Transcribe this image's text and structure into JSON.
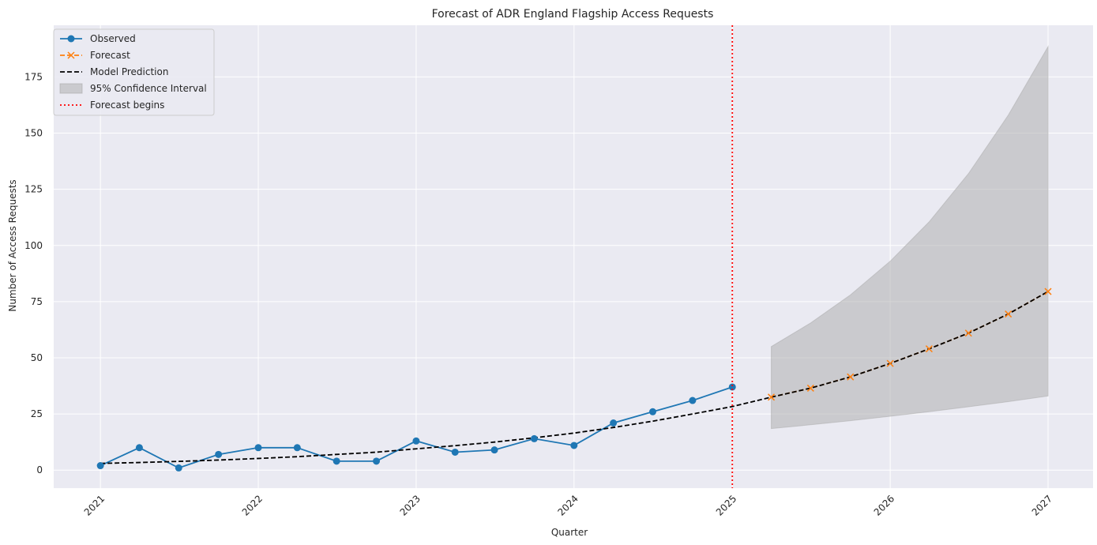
{
  "chart_data": {
    "type": "line",
    "title": "Forecast of ADR England Flagship Access Requests",
    "xlabel": "Quarter",
    "ylabel": "Number of Access Requests",
    "xlim": [
      "2020-09-15",
      "2027-04-15"
    ],
    "ylim": [
      -8,
      198
    ],
    "x_ticks": [
      "2021",
      "2022",
      "2023",
      "2024",
      "2025",
      "2026",
      "2027"
    ],
    "y_ticks": [
      "0",
      "25",
      "50",
      "75",
      "100",
      "125",
      "150",
      "175"
    ],
    "grid": true,
    "legend_position": "upper-left",
    "forecast_start": "2025-01-01",
    "series": [
      {
        "name": "Observed",
        "style": "line-with-circles",
        "color": "#1f77b4",
        "x": [
          "2021-01-01",
          "2021-04-01",
          "2021-07-01",
          "2021-10-01",
          "2022-01-01",
          "2022-04-01",
          "2022-07-01",
          "2022-10-01",
          "2023-01-01",
          "2023-04-01",
          "2023-07-01",
          "2023-10-01",
          "2024-01-01",
          "2024-04-01",
          "2024-07-01",
          "2024-10-01",
          "2025-01-01"
        ],
        "values": [
          2,
          10,
          1,
          7,
          10,
          10,
          4,
          4,
          13,
          8,
          9,
          14,
          11,
          21,
          26,
          31,
          37
        ]
      },
      {
        "name": "Forecast",
        "style": "dashed-with-x",
        "color": "#ff7f0e",
        "x": [
          "2025-04-01",
          "2025-07-01",
          "2025-10-01",
          "2026-01-01",
          "2026-04-01",
          "2026-07-01",
          "2026-10-01",
          "2027-01-01"
        ],
        "values": [
          32.5,
          36.5,
          41.5,
          47.5,
          54,
          61,
          69.5,
          79.5
        ]
      },
      {
        "name": "Model Prediction",
        "style": "dashed",
        "color": "#000000",
        "x": [
          "2021-01-01",
          "2021-04-01",
          "2021-07-01",
          "2021-10-01",
          "2022-01-01",
          "2022-04-01",
          "2022-07-01",
          "2022-10-01",
          "2023-01-01",
          "2023-04-01",
          "2023-07-01",
          "2023-10-01",
          "2024-01-01",
          "2024-04-01",
          "2024-07-01",
          "2024-10-01",
          "2025-01-01",
          "2025-04-01",
          "2025-07-01",
          "2025-10-01",
          "2026-01-01",
          "2026-04-01",
          "2026-07-01",
          "2026-10-01",
          "2027-01-01"
        ],
        "values": [
          3,
          3.4,
          3.9,
          4.5,
          5.2,
          6,
          7,
          8,
          9.5,
          10.9,
          12.5,
          14.4,
          16.5,
          19,
          21.8,
          25,
          28.3,
          32.5,
          36.5,
          41.5,
          47.5,
          54,
          61,
          69.5,
          79.5
        ]
      }
    ],
    "confidence_interval": {
      "name": "95% Confidence Interval",
      "color": "#a9a9a9",
      "x": [
        "2025-04-01",
        "2025-07-01",
        "2025-10-01",
        "2026-01-01",
        "2026-04-01",
        "2026-07-01",
        "2026-10-01",
        "2027-01-01"
      ],
      "lower": [
        18.5,
        20.2,
        22,
        24,
        26,
        28.2,
        30.5,
        33
      ],
      "upper": [
        55,
        65.5,
        78,
        93,
        110.5,
        132,
        158,
        188.5
      ]
    },
    "vline": {
      "name": "Forecast begins",
      "x": "2025-01-01",
      "color": "#ff0000",
      "style": "dotted"
    }
  }
}
